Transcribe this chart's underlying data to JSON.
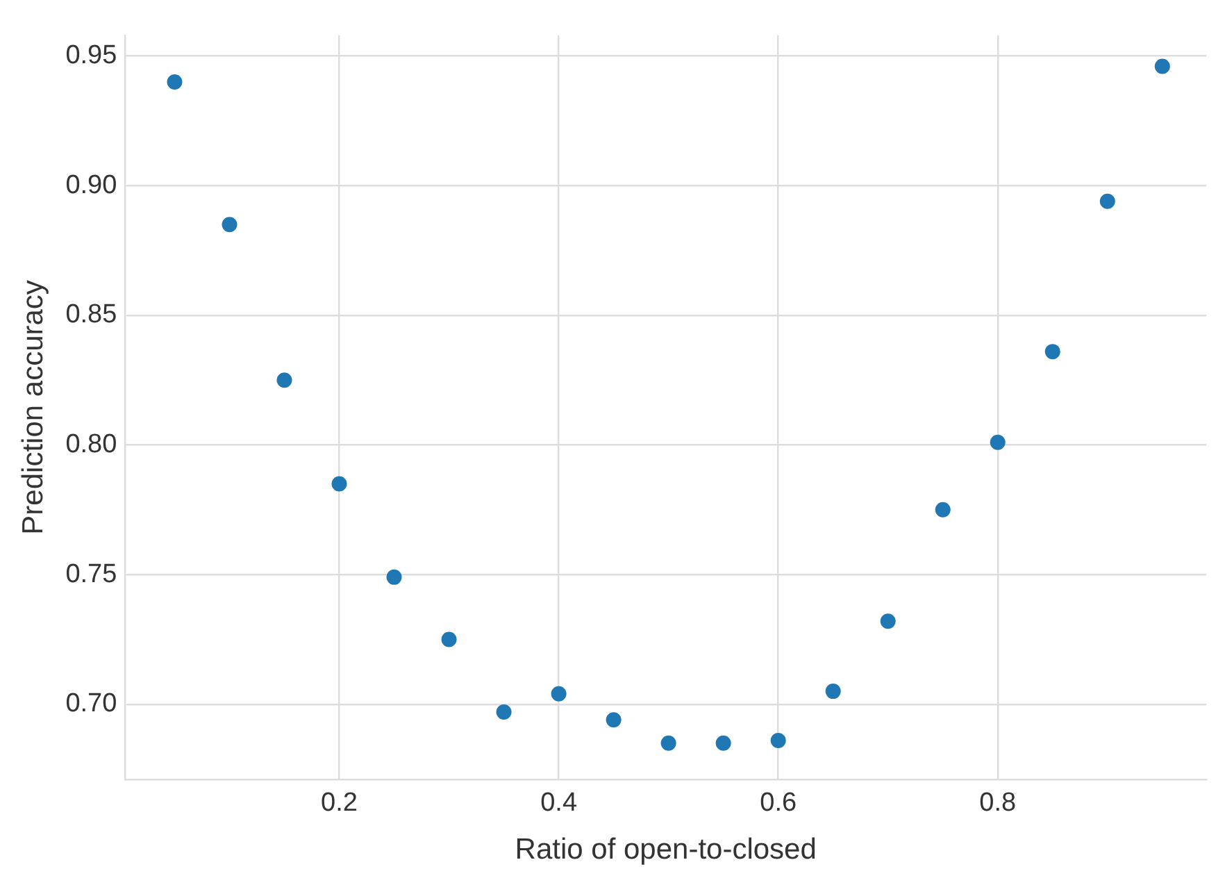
{
  "chart_data": {
    "type": "scatter",
    "xlabel": "Ratio of open-to-closed",
    "ylabel": "Prediction accuracy",
    "x": [
      0.05,
      0.1,
      0.15,
      0.2,
      0.25,
      0.3,
      0.35,
      0.4,
      0.45,
      0.5,
      0.55,
      0.6,
      0.65,
      0.7,
      0.75,
      0.8,
      0.85,
      0.9,
      0.95
    ],
    "series": [
      {
        "color": "#1f77b4",
        "values": [
          0.94,
          0.885,
          0.825,
          0.785,
          0.749,
          0.725,
          0.697,
          0.704,
          0.694,
          0.685,
          0.685,
          0.686,
          0.705,
          0.732,
          0.775,
          0.801,
          0.836,
          0.894,
          0.946
        ]
      }
    ],
    "xlim": [
      0.005,
      0.99
    ],
    "ylim": [
      0.671,
      0.958
    ],
    "xticks": [
      0.2,
      0.4,
      0.6,
      0.8
    ],
    "yticks": [
      {
        "value": 0.7,
        "label": "0.70"
      },
      {
        "value": 0.75,
        "label": "0.75"
      },
      {
        "value": 0.8,
        "label": "0.80"
      },
      {
        "value": 0.85,
        "label": "0.85"
      },
      {
        "value": 0.9,
        "label": "0.90"
      },
      {
        "value": 0.95,
        "label": "0.95"
      }
    ],
    "grid": true,
    "marker": "circle",
    "legend": false
  }
}
